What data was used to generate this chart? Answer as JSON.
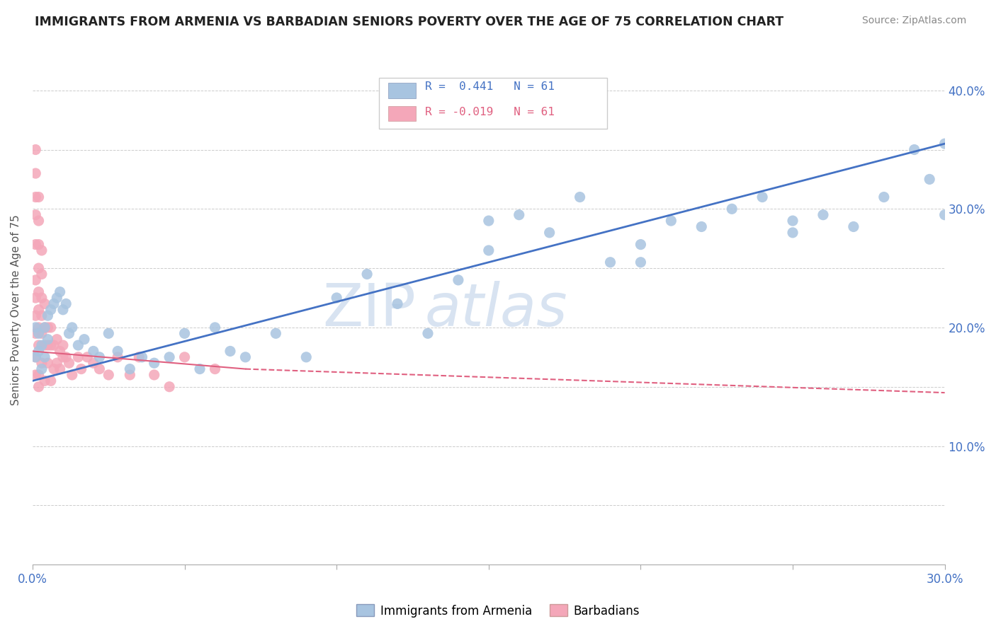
{
  "title": "IMMIGRANTS FROM ARMENIA VS BARBADIAN SENIORS POVERTY OVER THE AGE OF 75 CORRELATION CHART",
  "source": "Source: ZipAtlas.com",
  "ylabel": "Seniors Poverty Over the Age of 75",
  "xlim": [
    0.0,
    0.3
  ],
  "ylim": [
    0.0,
    0.43
  ],
  "r_armenia": 0.441,
  "n_armenia": 61,
  "r_barbadian": -0.019,
  "n_barbadian": 61,
  "armenia_color": "#a8c4e0",
  "barbadian_color": "#f4a7b9",
  "armenia_line_color": "#4472c4",
  "barbadian_line_color": "#e06080",
  "watermark_zip": "ZIP",
  "watermark_atlas": "atlas",
  "background_color": "#ffffff",
  "grid_color": "#cccccc",
  "armenia_x": [
    0.001,
    0.001,
    0.002,
    0.002,
    0.003,
    0.003,
    0.004,
    0.004,
    0.005,
    0.005,
    0.006,
    0.007,
    0.008,
    0.009,
    0.01,
    0.011,
    0.012,
    0.013,
    0.015,
    0.017,
    0.02,
    0.022,
    0.025,
    0.028,
    0.032,
    0.036,
    0.04,
    0.045,
    0.05,
    0.055,
    0.06,
    0.065,
    0.07,
    0.08,
    0.09,
    0.1,
    0.11,
    0.12,
    0.13,
    0.14,
    0.15,
    0.16,
    0.17,
    0.18,
    0.19,
    0.2,
    0.21,
    0.22,
    0.23,
    0.24,
    0.25,
    0.26,
    0.27,
    0.28,
    0.29,
    0.295,
    0.3,
    0.3,
    0.15,
    0.2,
    0.25
  ],
  "armenia_y": [
    0.175,
    0.2,
    0.18,
    0.195,
    0.185,
    0.165,
    0.2,
    0.175,
    0.21,
    0.19,
    0.215,
    0.22,
    0.225,
    0.23,
    0.215,
    0.22,
    0.195,
    0.2,
    0.185,
    0.19,
    0.18,
    0.175,
    0.195,
    0.18,
    0.165,
    0.175,
    0.17,
    0.175,
    0.195,
    0.165,
    0.2,
    0.18,
    0.175,
    0.195,
    0.175,
    0.225,
    0.245,
    0.22,
    0.195,
    0.24,
    0.265,
    0.295,
    0.28,
    0.31,
    0.255,
    0.27,
    0.29,
    0.285,
    0.3,
    0.31,
    0.28,
    0.295,
    0.285,
    0.31,
    0.35,
    0.325,
    0.355,
    0.295,
    0.29,
    0.255,
    0.29
  ],
  "barbadian_x": [
    0.001,
    0.001,
    0.001,
    0.001,
    0.001,
    0.001,
    0.001,
    0.001,
    0.001,
    0.001,
    0.001,
    0.002,
    0.002,
    0.002,
    0.002,
    0.002,
    0.002,
    0.002,
    0.002,
    0.002,
    0.002,
    0.003,
    0.003,
    0.003,
    0.003,
    0.003,
    0.003,
    0.004,
    0.004,
    0.004,
    0.004,
    0.005,
    0.005,
    0.005,
    0.006,
    0.006,
    0.006,
    0.007,
    0.007,
    0.008,
    0.008,
    0.009,
    0.009,
    0.01,
    0.01,
    0.011,
    0.012,
    0.013,
    0.015,
    0.016,
    0.018,
    0.02,
    0.022,
    0.025,
    0.028,
    0.032,
    0.035,
    0.04,
    0.045,
    0.05,
    0.06
  ],
  "barbadian_y": [
    0.195,
    0.21,
    0.225,
    0.24,
    0.27,
    0.295,
    0.31,
    0.33,
    0.35,
    0.175,
    0.16,
    0.185,
    0.2,
    0.215,
    0.23,
    0.25,
    0.27,
    0.29,
    0.31,
    0.16,
    0.15,
    0.195,
    0.21,
    0.225,
    0.245,
    0.265,
    0.17,
    0.185,
    0.2,
    0.22,
    0.155,
    0.185,
    0.2,
    0.17,
    0.185,
    0.2,
    0.155,
    0.185,
    0.165,
    0.19,
    0.17,
    0.18,
    0.165,
    0.185,
    0.175,
    0.175,
    0.17,
    0.16,
    0.175,
    0.165,
    0.175,
    0.17,
    0.165,
    0.16,
    0.175,
    0.16,
    0.175,
    0.16,
    0.15,
    0.175,
    0.165
  ]
}
